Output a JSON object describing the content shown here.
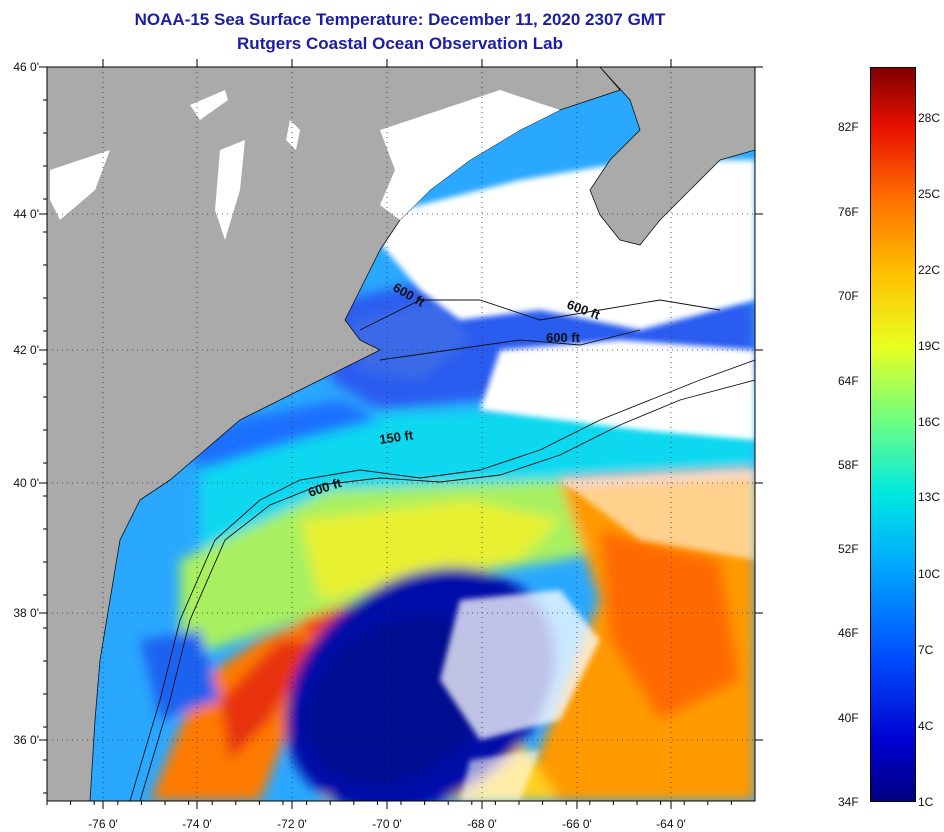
{
  "header": {
    "title": "NOAA-15 Sea Surface Temperature:  December 11, 2020 2307 GMT",
    "subtitle": "Rutgers Coastal Ocean Observation Lab"
  },
  "map": {
    "x_ticks": [
      "-76 0'",
      "-74 0'",
      "-72 0'",
      "-70 0'",
      "-68 0'",
      "-66 0'",
      "-64 0'"
    ],
    "y_ticks": [
      "46 0'",
      "44 0'",
      "42 0'",
      "40 0'",
      "38 0'",
      "36 0'"
    ],
    "contour_labels": {
      "c600_gulf": "600 ft",
      "c600_east": "600 ft",
      "c600_mid": "600 ft",
      "c150": "150 ft",
      "c600_shelf": "600 ft"
    },
    "colors": {
      "land": "#aaaaaa",
      "cloud": "#ffffff"
    }
  },
  "colorbar": {
    "fahrenheit": [
      "82F",
      "76F",
      "70F",
      "64F",
      "58F",
      "52F",
      "46F",
      "40F",
      "34F"
    ],
    "celsius": [
      "28C",
      "25C",
      "22C",
      "19C",
      "16C",
      "13C",
      "10C",
      "7C",
      "4C",
      "1C"
    ],
    "scale_min_c": 1,
    "scale_max_c": 30
  }
}
